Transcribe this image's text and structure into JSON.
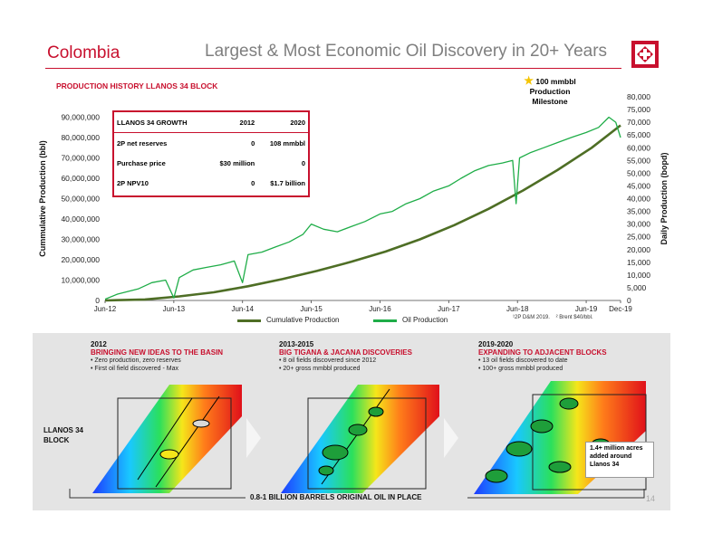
{
  "header": {
    "section": "Colombia",
    "headline": "Largest & Most Economic Oil Discovery in 20+ Years"
  },
  "chart_title": "PRODUCTION HISTORY LLANOS 34 BLOCK",
  "milestone": {
    "line1": "100 mmbbl",
    "line2": "Production Milestone"
  },
  "growth_table": {
    "headers": [
      "LLANOS 34 GROWTH",
      "2012",
      "2020"
    ],
    "rows": [
      [
        "2P net reserves",
        "0",
        "108 mmbbl"
      ],
      [
        "Purchase price",
        "$30 million",
        "0"
      ],
      [
        "2P NPV10",
        "0",
        "$1.7 billion"
      ]
    ]
  },
  "footnotes": {
    "note1": "¹2P D&M 2019.",
    "note2": "² Brent $40/bbl."
  },
  "colors": {
    "brand_red": "#c8102e",
    "cumulative": "#4e6e25",
    "oil": "#1fad48"
  },
  "chart_data": {
    "type": "line",
    "ylabel": "Cummulative Production (bbl)",
    "y2label": "Daily Production (bopd)",
    "x_tick_labels": [
      "Jun-12",
      "Jun-13",
      "Jun-14",
      "Jun-15",
      "Jun-16",
      "Jun-17",
      "Jun-18",
      "Jun-19",
      "Dec-19"
    ],
    "x_tick_dates": [
      2012.42,
      2013.42,
      2014.42,
      2015.42,
      2016.42,
      2017.42,
      2018.42,
      2019.42,
      2019.92
    ],
    "xlim": [
      2012.42,
      2019.92
    ],
    "y_tick_labels": [
      "0",
      "10,000,000",
      "20,000,000",
      "30,000,000",
      "40,000,000",
      "50,000,000",
      "60,000,000",
      "70,000,000",
      "80,000,000",
      "90,000,000"
    ],
    "ylim": [
      0,
      100000000
    ],
    "y2_tick_labels": [
      "0",
      "5,000",
      "10,000",
      "15,000",
      "20,000",
      "25,000",
      "30,000",
      "35,000",
      "40,000",
      "45,000",
      "50,000",
      "55,000",
      "60,000",
      "65,000",
      "70,000",
      "75,000",
      "80,000"
    ],
    "y2lim": [
      0,
      80000
    ],
    "legend": [
      "Cumulative Production",
      "Oil Production"
    ],
    "legend_position": "bottom",
    "grid": false,
    "series": [
      {
        "name": "Cumulative Production",
        "axis": "left",
        "x": [
          2012.42,
          2013.0,
          2013.5,
          2014.0,
          2014.5,
          2015.0,
          2015.5,
          2016.0,
          2016.5,
          2017.0,
          2017.5,
          2018.0,
          2018.5,
          2019.0,
          2019.5,
          2019.92
        ],
        "y": [
          0,
          500000,
          2000000,
          4000000,
          7000000,
          10500000,
          14500000,
          19000000,
          24000000,
          30000000,
          37000000,
          45000000,
          54000000,
          64000000,
          75000000,
          86000000
        ]
      },
      {
        "name": "Oil Production",
        "axis": "right",
        "x": [
          2012.42,
          2012.6,
          2012.9,
          2013.1,
          2013.3,
          2013.42,
          2013.5,
          2013.7,
          2013.9,
          2014.1,
          2014.3,
          2014.42,
          2014.5,
          2014.7,
          2014.9,
          2015.1,
          2015.3,
          2015.42,
          2015.6,
          2015.8,
          2016.0,
          2016.2,
          2016.42,
          2016.6,
          2016.8,
          2017.0,
          2017.2,
          2017.42,
          2017.6,
          2017.8,
          2018.0,
          2018.2,
          2018.35,
          2018.4,
          2018.45,
          2018.6,
          2018.8,
          2019.0,
          2019.2,
          2019.42,
          2019.6,
          2019.75,
          2019.85,
          2019.92
        ],
        "y": [
          500,
          2500,
          4500,
          7000,
          8000,
          1000,
          9000,
          12000,
          13000,
          14000,
          15500,
          7000,
          18000,
          19000,
          21000,
          23000,
          26000,
          30000,
          28000,
          27000,
          29000,
          31000,
          34000,
          35000,
          38000,
          40000,
          43000,
          45000,
          48000,
          51000,
          53000,
          54000,
          55000,
          38000,
          56000,
          58000,
          60000,
          62000,
          64000,
          66000,
          68000,
          72000,
          70000,
          64000
        ]
      }
    ]
  },
  "stages": [
    {
      "year": "2012",
      "heading": "BRINGING NEW IDEAS TO THE BASIN",
      "bullets": [
        "Zero production, zero reserves",
        "First oil field discovered - Max"
      ]
    },
    {
      "year": "2013-2015",
      "heading": "BIG TIGANA & JACANA DISCOVERIES",
      "bullets": [
        "8 oil fields discovered since 2012",
        "20+ gross mmbbl produced"
      ]
    },
    {
      "year": "2019-2020",
      "heading": "EXPANDING TO ADJACENT BLOCKS",
      "bullets": [
        "13 oil fields discovered to date",
        "100+ gross mmbbl produced"
      ]
    }
  ],
  "block_label": {
    "line1": "LLANOS 34",
    "line2": "BLOCK"
  },
  "acres_note": "1.4+ million acres added around Llanos 34",
  "ooip": "0.8-1 BILLION BARRELS ORIGINAL OIL IN PLACE",
  "page_number": "14"
}
